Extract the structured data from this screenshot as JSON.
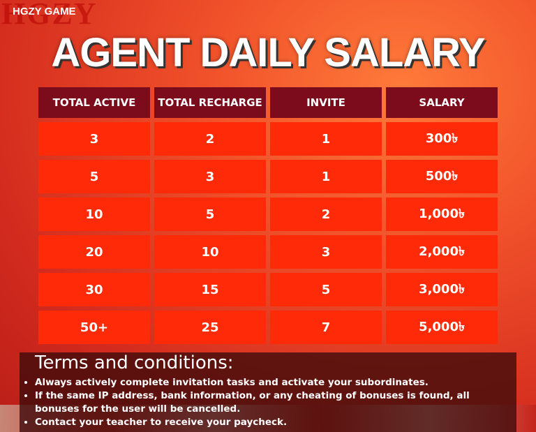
{
  "header": {
    "brand": "HGZY GAME",
    "brand_logo": "HGZY",
    "title": "AGENT DAILY SALARY"
  },
  "table": {
    "columns": [
      "TOTAL ACTIVE",
      "TOTAL RECHARGE",
      "INVITE",
      "SALARY"
    ],
    "rows": [
      [
        "3",
        "2",
        "1",
        "300৳"
      ],
      [
        "5",
        "3",
        "1",
        "500৳"
      ],
      [
        "10",
        "5",
        "2",
        "1,000৳"
      ],
      [
        "20",
        "10",
        "3",
        "2,000৳"
      ],
      [
        "30",
        "15",
        "5",
        "3,000৳"
      ],
      [
        "50+",
        "25",
        "7",
        "5,000৳"
      ]
    ]
  },
  "terms": {
    "title": "Terms and conditions:",
    "items": [
      "Always actively complete invitation tasks and activate your subordinates.",
      "If the same IP address, bank information, or any cheating of bonuses is found, all bonuses for the user will be cancelled.",
      "Contact your teacher to receive your paycheck."
    ]
  }
}
